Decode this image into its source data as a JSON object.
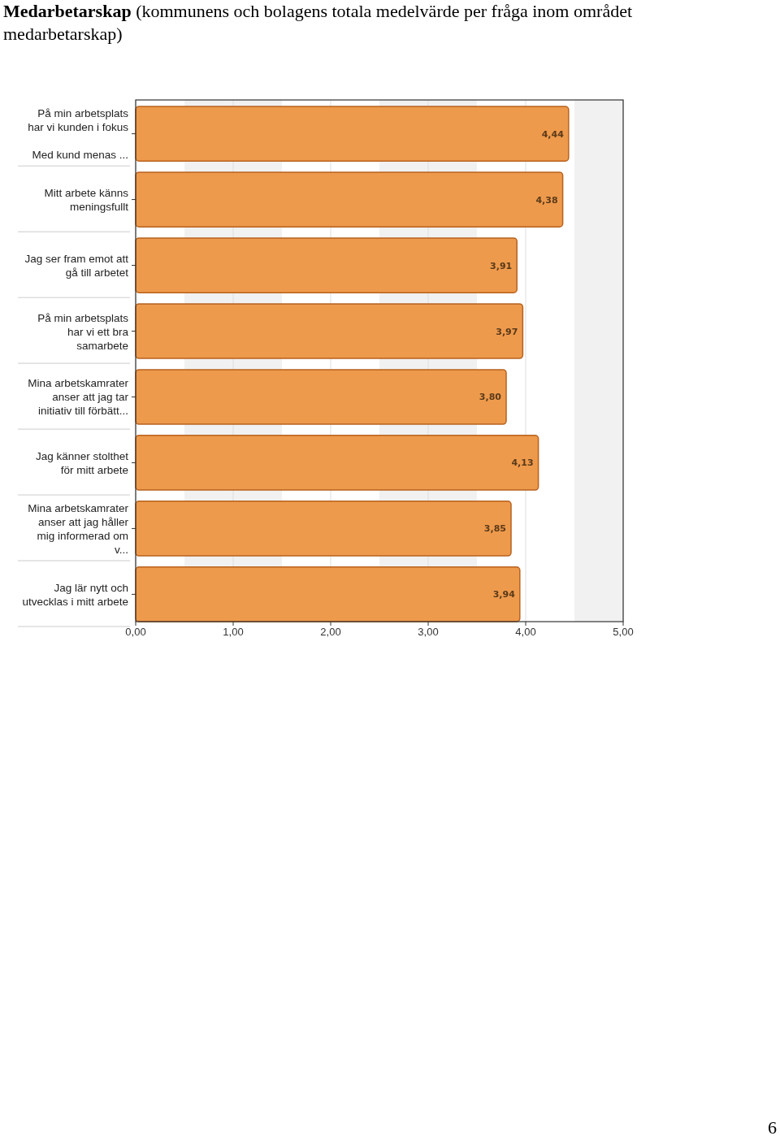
{
  "chart_data": {
    "type": "bar",
    "orientation": "horizontal",
    "title": "Medarbetarskap (kommunens och bolagens totala medelvärde per fråga inom området medarbetarskap)",
    "categories": [
      "På min arbetsplats\nhar vi kunden i fokus\n\nMed kund menas ...",
      "Mitt arbete känns\nmeningsfullt",
      "Jag ser fram emot att\ngå till arbetet",
      "På min arbetsplats\nhar vi ett bra\nsamarbete",
      "Mina arbetskamrater\nanser att jag tar\ninitiativ till förbätt...",
      "Jag känner stolthet\nför mitt arbete",
      "Mina arbetskamrater\nanser att jag håller\nmig informerad om\nv...",
      "Jag lär nytt och\nutvecklas i mitt arbete"
    ],
    "values": [
      4.44,
      4.38,
      3.91,
      3.97,
      3.8,
      4.13,
      3.85,
      3.94
    ],
    "value_labels": [
      "4,44",
      "4,38",
      "3,91",
      "3,97",
      "3,80",
      "4,13",
      "3,85",
      "3,94"
    ],
    "color": "#ee9a4c",
    "xlim": [
      0,
      5
    ],
    "xticks": [
      {
        "value": 0,
        "label": "0,00"
      },
      {
        "value": 1,
        "label": "1,00"
      },
      {
        "value": 2,
        "label": "2,00"
      },
      {
        "value": 3,
        "label": "3,00"
      },
      {
        "value": 4,
        "label": "4,00"
      },
      {
        "value": 5,
        "label": "5,00"
      }
    ],
    "grid": "x",
    "bands": [
      {
        "axis": "x",
        "from": 0.5,
        "to": 1.5,
        "color": "#f1f1f1"
      },
      {
        "axis": "x",
        "from": 2.5,
        "to": 3.5,
        "color": "#f1f1f1"
      },
      {
        "axis": "x",
        "from": 4.5,
        "to": 5,
        "color": "#f1f1f1"
      }
    ],
    "annotations": [
      "6"
    ]
  }
}
